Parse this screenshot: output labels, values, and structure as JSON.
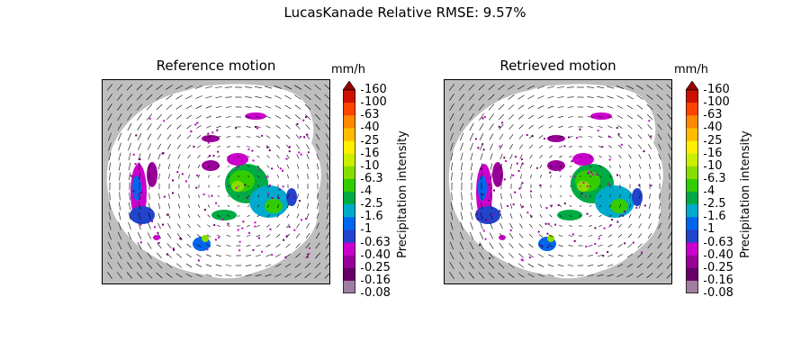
{
  "figure": {
    "suptitle": "LucasKanade Relative RMSE: 9.57%"
  },
  "panels": [
    {
      "title": "Reference motion"
    },
    {
      "title": "Retrieved motion"
    }
  ],
  "colorbar": {
    "unit": "mm/h",
    "label": "Precipitation intensity",
    "ticks": [
      "160",
      "100",
      "63",
      "40",
      "25",
      "16",
      "10",
      "6.3",
      "4",
      "2.5",
      "1.6",
      "1",
      "0.63",
      "0.40",
      "0.25",
      "0.16",
      "0.08"
    ],
    "colors": [
      "#cc1100",
      "#ff4400",
      "#ff8800",
      "#ffbb00",
      "#ffee00",
      "#ccee00",
      "#88dd00",
      "#33cc00",
      "#00aa44",
      "#00aacc",
      "#0066ee",
      "#2244cc",
      "#cc00cc",
      "#990099",
      "#660066",
      "#a07ea0"
    ],
    "extend_color": "#990000",
    "no_data_color": "#bebebe"
  }
}
